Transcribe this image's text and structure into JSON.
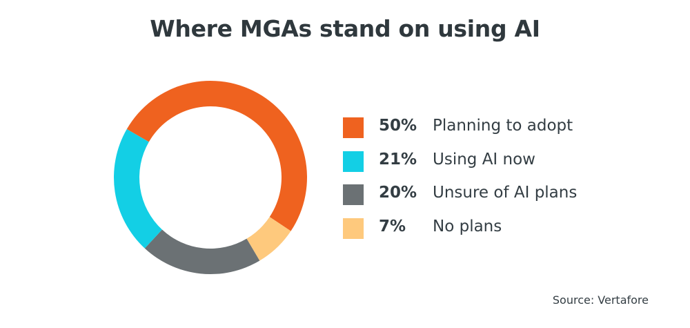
{
  "title": "Where MGAs stand on using AI",
  "source": "Source: Vertafore",
  "chart_data": {
    "type": "pie",
    "donut": true,
    "start_angle_deg": -60,
    "direction": "clockwise",
    "title": "Where MGAs stand on using AI",
    "legend_position": "right",
    "slices": [
      {
        "label": "Planning to adopt",
        "pct_label": "50%",
        "value": 50,
        "color": "#ef621f"
      },
      {
        "label": "No plans",
        "pct_label": "7%",
        "value": 7,
        "color": "#fec97d"
      },
      {
        "label": "Unsure of AI plans",
        "pct_label": "20%",
        "value": 20,
        "color": "#6b7174"
      },
      {
        "label": "Using AI now",
        "pct_label": "21%",
        "value": 21,
        "color": "#13cfe5"
      }
    ],
    "legend": [
      {
        "pct_label": "50%",
        "label": "Planning to adopt",
        "color": "#ef621f"
      },
      {
        "pct_label": "21%",
        "label": "Using AI now",
        "color": "#13cfe5"
      },
      {
        "pct_label": "20%",
        "label": "Unsure of AI plans",
        "color": "#6b7174"
      },
      {
        "pct_label": "7%",
        "label": "No plans",
        "color": "#fec97d"
      }
    ]
  }
}
